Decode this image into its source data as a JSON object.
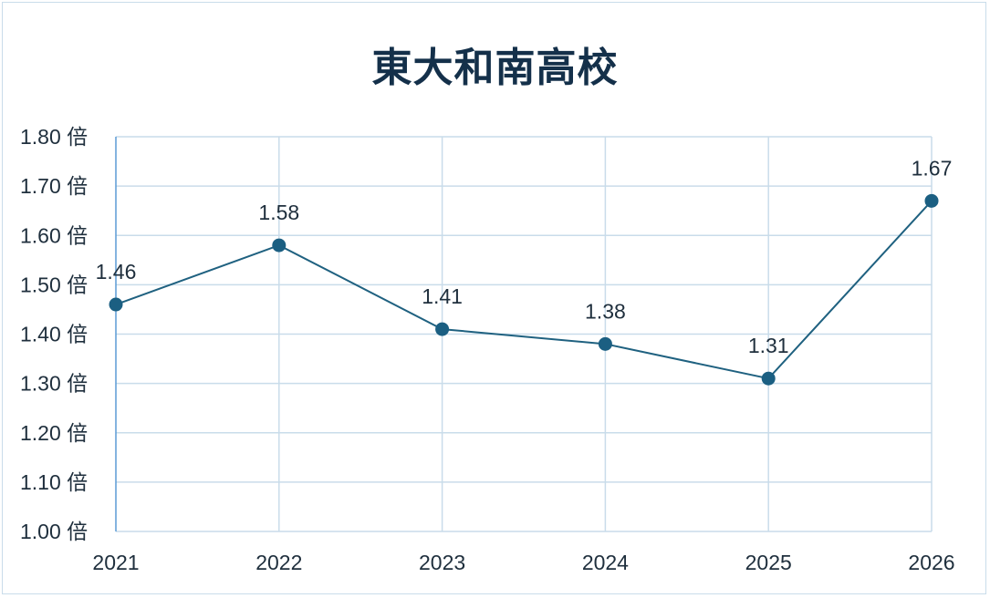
{
  "chart_data": {
    "type": "line",
    "title": "東大和南高校",
    "categories": [
      "2021",
      "2022",
      "2023",
      "2024",
      "2025",
      "2026"
    ],
    "series": [
      {
        "values": [
          1.46,
          1.58,
          1.41,
          1.38,
          1.31,
          1.67
        ]
      }
    ],
    "data_labels": [
      "1.46",
      "1.58",
      "1.41",
      "1.38",
      "1.31",
      "1.67"
    ],
    "y_ticks": [
      "1.00 倍",
      "1.10 倍",
      "1.20 倍",
      "1.30 倍",
      "1.40 倍",
      "1.50 倍",
      "1.60 倍",
      "1.70 倍",
      "1.80 倍"
    ],
    "ylim": [
      1.0,
      1.8
    ],
    "grid": true,
    "xlabel": "",
    "ylabel": "",
    "colors": {
      "line": "#1f6180",
      "marker": "#1b5f82",
      "grid": "#c9dcea",
      "axis": "#5b9bd5"
    }
  }
}
